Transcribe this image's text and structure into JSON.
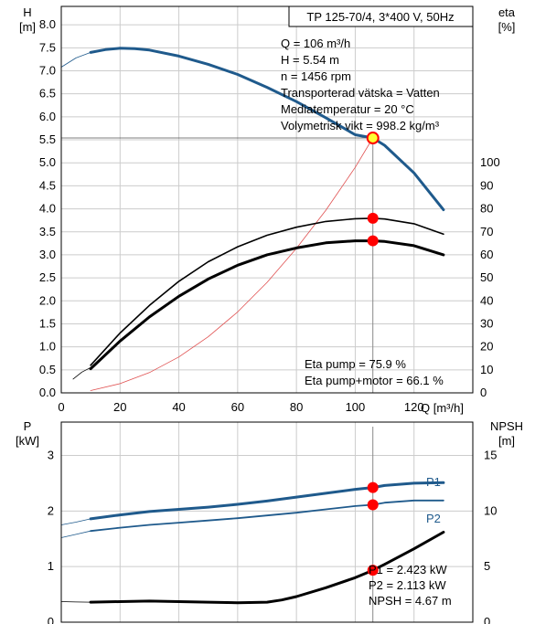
{
  "colors": {
    "head_curve": "#1f5a8c",
    "power_curve": "#1f5a8c",
    "efficiency_curve": "#000000",
    "efficiency_pump_motor_curve": "#000000",
    "npsh_curve": "#000000",
    "system_curve": "#e05050",
    "operating_point": "#ff0000",
    "operating_point_highlight": "#ffff33",
    "grid": "#cccccc",
    "frame": "#000000"
  },
  "chart_data": [
    {
      "type": "line",
      "id": "head_efficiency",
      "title": "TP 125-70/4, 3*400 V, 50Hz",
      "y_left_label": "H",
      "y_left_unit": "[m]",
      "y_right_label": "eta",
      "y_right_unit": "[%]",
      "x_label": "Q [m³/h]",
      "xlim": [
        0,
        140
      ],
      "x_ticks": [
        "0",
        "20",
        "40",
        "60",
        "80",
        "100",
        "120"
      ],
      "x_tick_values": [
        0,
        20,
        40,
        60,
        80,
        100,
        120
      ],
      "ylim_left": [
        0,
        8.4
      ],
      "y_left_ticks": [
        "0.0",
        "0.5",
        "1.0",
        "1.5",
        "2.0",
        "2.5",
        "3.0",
        "3.5",
        "4.0",
        "4.5",
        "5.0",
        "5.5",
        "6.0",
        "6.5",
        "7.0",
        "7.5",
        "8.0"
      ],
      "y_left_tick_values": [
        0,
        0.5,
        1.0,
        1.5,
        2.0,
        2.5,
        3.0,
        3.5,
        4.0,
        4.5,
        5.0,
        5.5,
        6.0,
        6.5,
        7.0,
        7.5,
        8.0
      ],
      "ylim_right": [
        0,
        168
      ],
      "y_right_ticks": [
        "0",
        "10",
        "20",
        "30",
        "40",
        "50",
        "60",
        "70",
        "80",
        "90",
        "100"
      ],
      "y_right_tick_values": [
        0,
        10,
        20,
        30,
        40,
        50,
        60,
        70,
        80,
        90,
        100
      ],
      "grid": true,
      "info_lines": [
        "Q = 106 m³/h",
        "H = 5.54 m",
        "n = 1456 rpm",
        "Transporterad vätska = Vatten",
        "Mediatemperatur = 20 °C",
        "Volymetrisk vikt = 998.2 kg/m³"
      ],
      "bottom_info_lines": [
        "Eta pump = 75.9 %",
        "Eta pump+motor = 66.1 %"
      ],
      "head_curve": {
        "axis": "left",
        "x": [
          10,
          15,
          20,
          25,
          30,
          40,
          50,
          60,
          70,
          80,
          90,
          100,
          106,
          110,
          120,
          130
        ],
        "y": [
          7.4,
          7.46,
          7.49,
          7.48,
          7.45,
          7.32,
          7.14,
          6.92,
          6.64,
          6.33,
          5.98,
          5.61,
          5.54,
          5.38,
          4.78,
          3.98
        ]
      },
      "head_curve_extrapolated": {
        "axis": "left",
        "x": [
          0,
          5,
          10
        ],
        "y": [
          7.08,
          7.28,
          7.4
        ]
      },
      "eta_pump_curve": {
        "axis": "right",
        "x": [
          10,
          20,
          30,
          40,
          50,
          60,
          70,
          80,
          90,
          100,
          106,
          110,
          120,
          130
        ],
        "y": [
          12,
          26,
          38,
          48.5,
          57,
          63.5,
          68.5,
          72,
          74.5,
          75.7,
          75.9,
          75.6,
          73.5,
          69
        ]
      },
      "eta_pump_motor_curve": {
        "axis": "right",
        "x": [
          10,
          20,
          30,
          40,
          50,
          60,
          70,
          80,
          90,
          100,
          106,
          110,
          120,
          130
        ],
        "y": [
          10.5,
          22.5,
          33,
          42,
          49.5,
          55.5,
          60,
          63,
          65.2,
          66.1,
          66.1,
          65.8,
          64,
          60
        ]
      },
      "eta_extrapolated": {
        "axis": "right",
        "x": [
          4,
          7,
          10
        ],
        "y": [
          6,
          9,
          11
        ]
      },
      "system_curve": {
        "axis": "left",
        "x": [
          10,
          20,
          30,
          40,
          50,
          60,
          70,
          80,
          90,
          100,
          106
        ],
        "y": [
          0.05,
          0.2,
          0.44,
          0.78,
          1.22,
          1.76,
          2.4,
          3.14,
          3.97,
          4.9,
          5.54
        ]
      },
      "operating_points": [
        {
          "name": "head",
          "axis": "left",
          "x": 106,
          "y": 5.54,
          "highlight": true
        },
        {
          "name": "eta_pump",
          "axis": "right",
          "x": 106,
          "y": 75.9
        },
        {
          "name": "eta_pump_motor",
          "axis": "right",
          "x": 106,
          "y": 66.1
        }
      ]
    },
    {
      "type": "line",
      "id": "power_npsh",
      "y_left_label": "P",
      "y_left_unit": "[kW]",
      "y_right_label": "NPSH",
      "y_right_unit": "[m]",
      "xlim": [
        0,
        140
      ],
      "ylim_left": [
        0,
        3.6
      ],
      "y_left_ticks": [
        "0",
        "1",
        "2",
        "3"
      ],
      "y_left_tick_values": [
        0,
        1,
        2,
        3
      ],
      "ylim_right": [
        0,
        18
      ],
      "y_right_ticks": [
        "0",
        "5",
        "10",
        "15"
      ],
      "y_right_tick_values": [
        0,
        5,
        10,
        15
      ],
      "grid": true,
      "info_lines": [
        "P1 = 2.423 kW",
        "P2 = 2.113 kW",
        "NPSH = 4.67 m"
      ],
      "p1_curve": {
        "name": "P1",
        "axis": "left",
        "x": [
          10,
          20,
          30,
          40,
          50,
          60,
          70,
          80,
          90,
          100,
          106,
          110,
          120,
          130
        ],
        "y": [
          1.86,
          1.93,
          1.99,
          2.03,
          2.07,
          2.12,
          2.18,
          2.25,
          2.32,
          2.39,
          2.423,
          2.46,
          2.5,
          2.51
        ]
      },
      "p1_extrapolated": {
        "axis": "left",
        "x": [
          0,
          5,
          10
        ],
        "y": [
          1.75,
          1.8,
          1.86
        ]
      },
      "p2_curve": {
        "name": "P2",
        "axis": "left",
        "x": [
          10,
          20,
          30,
          40,
          50,
          60,
          70,
          80,
          90,
          100,
          106,
          110,
          120,
          130
        ],
        "y": [
          1.64,
          1.7,
          1.75,
          1.79,
          1.83,
          1.87,
          1.92,
          1.97,
          2.03,
          2.09,
          2.113,
          2.15,
          2.19,
          2.19
        ]
      },
      "p2_extrapolated": {
        "axis": "left",
        "x": [
          0,
          5,
          10
        ],
        "y": [
          1.52,
          1.58,
          1.64
        ]
      },
      "npsh_curve": {
        "axis": "right",
        "x": [
          10,
          20,
          30,
          40,
          50,
          60,
          70,
          75,
          80,
          90,
          100,
          106,
          110,
          120,
          130
        ],
        "y": [
          1.8,
          1.85,
          1.9,
          1.85,
          1.8,
          1.75,
          1.8,
          2.0,
          2.3,
          3.1,
          4.0,
          4.67,
          5.2,
          6.6,
          8.1
        ]
      },
      "npsh_extrapolated": {
        "axis": "right",
        "x": [
          0,
          5,
          10
        ],
        "y": [
          1.85,
          1.82,
          1.8
        ]
      },
      "operating_points": [
        {
          "name": "p1",
          "axis": "left",
          "x": 106,
          "y": 2.423
        },
        {
          "name": "p2",
          "axis": "left",
          "x": 106,
          "y": 2.113
        },
        {
          "name": "npsh",
          "axis": "right",
          "x": 106,
          "y": 4.67
        }
      ]
    }
  ]
}
